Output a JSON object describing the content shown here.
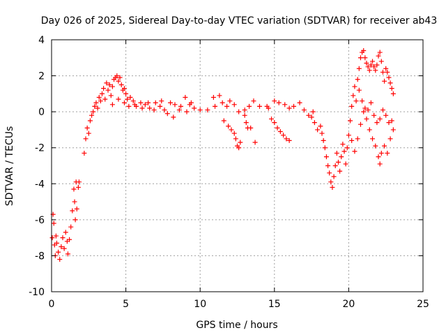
{
  "chart_data": {
    "type": "scatter",
    "title": "Day 026 of 2025, Sidereal Day-to-day VTEC variation (SDTVAR) for receiver ab43",
    "xlabel": "GPS time / hours",
    "ylabel": "SDTVAR / TECUs",
    "xlim": [
      0,
      25
    ],
    "ylim": [
      -10,
      4
    ],
    "xticks": [
      0,
      5,
      10,
      15,
      20,
      25
    ],
    "yticks": [
      -10,
      -8,
      -6,
      -4,
      -2,
      0,
      2,
      4
    ],
    "x_tick_labels": [
      "0",
      "5",
      "10",
      "15",
      "20",
      "25"
    ],
    "y_tick_labels": [
      "-10",
      "-8",
      "-6",
      "-4",
      "-2",
      "0",
      "2",
      "4"
    ],
    "grid": true,
    "marker": "+",
    "series": [
      {
        "name": "SDTVAR",
        "color": "#ff0000",
        "points": [
          [
            0.05,
            -7.0
          ],
          [
            0.1,
            -5.7
          ],
          [
            0.15,
            -6.2
          ],
          [
            0.2,
            -7.4
          ],
          [
            0.25,
            -8.0
          ],
          [
            0.3,
            -6.9
          ],
          [
            0.35,
            -7.3
          ],
          [
            0.45,
            -7.8
          ],
          [
            0.55,
            -8.2
          ],
          [
            0.65,
            -7.5
          ],
          [
            0.75,
            -7.0
          ],
          [
            0.85,
            -7.6
          ],
          [
            0.95,
            -6.7
          ],
          [
            1.05,
            -7.2
          ],
          [
            1.1,
            -7.9
          ],
          [
            1.2,
            -7.1
          ],
          [
            1.3,
            -6.4
          ],
          [
            1.4,
            -5.5
          ],
          [
            1.5,
            -4.3
          ],
          [
            1.55,
            -5.0
          ],
          [
            1.6,
            -6.0
          ],
          [
            1.65,
            -3.9
          ],
          [
            1.7,
            -5.4
          ],
          [
            1.8,
            -4.2
          ],
          [
            1.85,
            -3.9
          ],
          [
            2.2,
            -2.3
          ],
          [
            2.3,
            -1.5
          ],
          [
            2.4,
            -0.9
          ],
          [
            2.5,
            -1.2
          ],
          [
            2.6,
            -0.5
          ],
          [
            2.7,
            -0.2
          ],
          [
            2.8,
            0.0
          ],
          [
            2.9,
            0.3
          ],
          [
            3.0,
            0.5
          ],
          [
            3.1,
            0.2
          ],
          [
            3.2,
            0.8
          ],
          [
            3.3,
            0.6
          ],
          [
            3.4,
            1.0
          ],
          [
            3.5,
            1.3
          ],
          [
            3.6,
            0.7
          ],
          [
            3.7,
            1.6
          ],
          [
            3.8,
            1.2
          ],
          [
            3.9,
            1.5
          ],
          [
            4.0,
            0.9
          ],
          [
            4.1,
            1.4
          ],
          [
            4.2,
            1.8
          ],
          [
            4.3,
            1.9
          ],
          [
            4.4,
            2.0
          ],
          [
            4.5,
            1.7
          ],
          [
            4.6,
            1.9
          ],
          [
            4.7,
            1.5
          ],
          [
            4.8,
            1.2
          ],
          [
            4.9,
            1.3
          ],
          [
            5.0,
            1.0
          ],
          [
            5.1,
            0.7
          ],
          [
            5.3,
            0.8
          ],
          [
            5.5,
            0.6
          ],
          [
            5.7,
            0.3
          ],
          [
            6.0,
            0.5
          ],
          [
            6.3,
            0.4
          ],
          [
            6.6,
            0.2
          ],
          [
            7.0,
            0.5
          ],
          [
            7.3,
            0.3
          ],
          [
            7.6,
            0.1
          ],
          [
            8.0,
            0.5
          ],
          [
            8.3,
            0.4
          ],
          [
            8.6,
            0.1
          ],
          [
            9.0,
            0.8
          ],
          [
            9.3,
            0.4
          ],
          [
            9.6,
            0.2
          ],
          [
            10.0,
            0.1
          ],
          [
            4.1,
            0.4
          ],
          [
            4.5,
            0.7
          ],
          [
            4.9,
            0.5
          ],
          [
            5.2,
            0.3
          ],
          [
            5.6,
            0.4
          ],
          [
            6.1,
            0.2
          ],
          [
            6.5,
            0.5
          ],
          [
            6.9,
            0.1
          ],
          [
            7.4,
            0.6
          ],
          [
            7.8,
            -0.1
          ],
          [
            8.2,
            -0.3
          ],
          [
            8.7,
            0.3
          ],
          [
            9.1,
            0.0
          ],
          [
            9.4,
            0.5
          ],
          [
            10.5,
            0.1
          ],
          [
            10.9,
            0.8
          ],
          [
            11.0,
            0.3
          ],
          [
            11.3,
            0.9
          ],
          [
            11.5,
            0.5
          ],
          [
            11.8,
            0.3
          ],
          [
            12.0,
            0.6
          ],
          [
            12.3,
            0.4
          ],
          [
            12.6,
            0.0
          ],
          [
            13.0,
            0.1
          ],
          [
            13.3,
            0.3
          ],
          [
            13.6,
            0.6
          ],
          [
            14.0,
            0.3
          ],
          [
            14.5,
            0.3
          ],
          [
            15.0,
            0.6
          ],
          [
            15.3,
            0.5
          ],
          [
            15.7,
            0.4
          ],
          [
            16.0,
            0.2
          ],
          [
            16.3,
            0.3
          ],
          [
            16.7,
            0.5
          ],
          [
            17.0,
            0.1
          ],
          [
            17.3,
            -0.2
          ],
          [
            17.6,
            0.0
          ],
          [
            11.6,
            -0.5
          ],
          [
            11.9,
            -0.8
          ],
          [
            12.1,
            -1.0
          ],
          [
            12.3,
            -1.2
          ],
          [
            12.4,
            -1.5
          ],
          [
            12.5,
            -1.9
          ],
          [
            12.6,
            -2.0
          ],
          [
            12.7,
            -1.7
          ],
          [
            13.0,
            -0.2
          ],
          [
            13.1,
            -0.6
          ],
          [
            13.2,
            -0.9
          ],
          [
            13.7,
            -1.7
          ],
          [
            13.4,
            -0.9
          ],
          [
            14.6,
            0.2
          ],
          [
            14.8,
            -0.4
          ],
          [
            15.0,
            -0.6
          ],
          [
            15.2,
            -0.9
          ],
          [
            15.4,
            -1.1
          ],
          [
            15.6,
            -1.3
          ],
          [
            15.8,
            -1.5
          ],
          [
            16.0,
            -1.6
          ],
          [
            17.5,
            -0.3
          ],
          [
            17.7,
            -0.6
          ],
          [
            17.9,
            -1.0
          ],
          [
            18.1,
            -0.8
          ],
          [
            18.2,
            -1.2
          ],
          [
            18.3,
            -1.6
          ],
          [
            18.4,
            -2.0
          ],
          [
            18.5,
            -2.5
          ],
          [
            18.6,
            -3.0
          ],
          [
            18.7,
            -3.4
          ],
          [
            18.8,
            -3.9
          ],
          [
            18.9,
            -4.2
          ],
          [
            19.0,
            -3.6
          ],
          [
            19.1,
            -3.0
          ],
          [
            19.2,
            -2.3
          ],
          [
            19.3,
            -2.8
          ],
          [
            19.4,
            -3.3
          ],
          [
            19.5,
            -2.5
          ],
          [
            19.6,
            -1.8
          ],
          [
            19.7,
            -2.2
          ],
          [
            19.8,
            -2.9
          ],
          [
            19.9,
            -2.0
          ],
          [
            20.0,
            -1.3
          ],
          [
            20.1,
            -0.5
          ],
          [
            20.2,
            0.3
          ],
          [
            20.3,
            0.9
          ],
          [
            20.4,
            1.4
          ],
          [
            20.5,
            0.6
          ],
          [
            20.6,
            1.8
          ],
          [
            20.7,
            2.4
          ],
          [
            20.8,
            3.0
          ],
          [
            20.9,
            3.3
          ],
          [
            21.0,
            3.4
          ],
          [
            21.1,
            3.0
          ],
          [
            21.2,
            2.7
          ],
          [
            21.3,
            2.5
          ],
          [
            21.4,
            2.3
          ],
          [
            21.5,
            2.6
          ],
          [
            21.6,
            2.8
          ],
          [
            21.7,
            2.5
          ],
          [
            21.8,
            2.3
          ],
          [
            21.9,
            2.6
          ],
          [
            22.0,
            3.1
          ],
          [
            22.1,
            3.3
          ],
          [
            22.2,
            2.8
          ],
          [
            22.3,
            2.2
          ],
          [
            22.4,
            1.7
          ],
          [
            22.5,
            2.4
          ],
          [
            22.6,
            2.2
          ],
          [
            22.7,
            1.9
          ],
          [
            22.8,
            1.6
          ],
          [
            22.9,
            1.3
          ],
          [
            23.0,
            1.0
          ],
          [
            20.2,
            -1.6
          ],
          [
            20.4,
            -2.2
          ],
          [
            20.6,
            -1.5
          ],
          [
            20.8,
            -0.7
          ],
          [
            21.0,
            0.0
          ],
          [
            21.2,
            -0.4
          ],
          [
            21.4,
            -1.0
          ],
          [
            21.6,
            -1.5
          ],
          [
            21.8,
            -1.9
          ],
          [
            22.0,
            -2.5
          ],
          [
            22.1,
            -2.9
          ],
          [
            22.2,
            -2.3
          ],
          [
            22.4,
            -1.9
          ],
          [
            22.6,
            -2.3
          ],
          [
            22.8,
            -1.5
          ],
          [
            23.0,
            -1.0
          ],
          [
            20.7,
            1.2
          ],
          [
            20.9,
            0.6
          ],
          [
            21.1,
            0.2
          ],
          [
            21.3,
            0.1
          ],
          [
            21.5,
            0.5
          ],
          [
            21.7,
            -0.2
          ],
          [
            21.9,
            -0.6
          ],
          [
            22.1,
            -0.4
          ],
          [
            22.3,
            0.1
          ],
          [
            22.5,
            -0.2
          ],
          [
            22.7,
            -0.6
          ],
          [
            22.9,
            -0.5
          ]
        ]
      }
    ]
  }
}
